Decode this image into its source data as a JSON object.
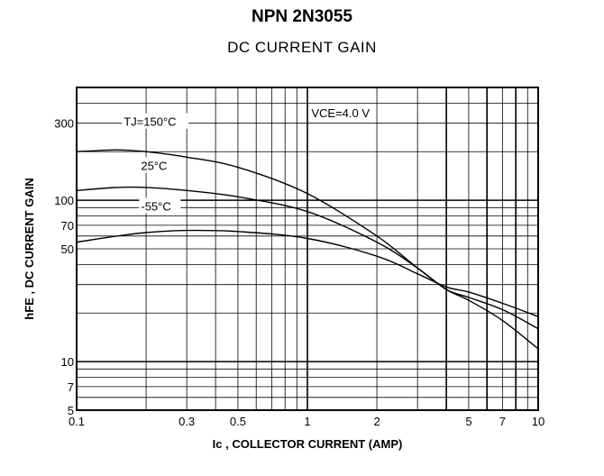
{
  "header": {
    "title": "NPN 2N3055",
    "subtitle": "DC CURRENT GAIN"
  },
  "chart_data": {
    "type": "line",
    "title": "DC CURRENT GAIN",
    "xlabel": "Ic , COLLECTOR CURRENT (AMP)",
    "ylabel": "hFE , DC CURRENT GAIN",
    "xscale": "log",
    "yscale": "log",
    "xlim": [
      0.1,
      10
    ],
    "ylim": [
      5,
      500
    ],
    "grid": true,
    "x_tick_labels": [
      {
        "value": 0.1,
        "label": "0.1"
      },
      {
        "value": 0.3,
        "label": "0.3"
      },
      {
        "value": 0.5,
        "label": "0.5"
      },
      {
        "value": 1,
        "label": "1"
      },
      {
        "value": 2,
        "label": "2"
      },
      {
        "value": 5,
        "label": "5"
      },
      {
        "value": 7,
        "label": "7"
      },
      {
        "value": 10,
        "label": "10"
      }
    ],
    "y_tick_labels": [
      {
        "value": 300,
        "label": "300"
      },
      {
        "value": 100,
        "label": "100"
      },
      {
        "value": 70,
        "label": "70"
      },
      {
        "value": 50,
        "label": "50"
      },
      {
        "value": 10,
        "label": "10"
      },
      {
        "value": 7,
        "label": "7"
      },
      {
        "value": 5,
        "label": "5"
      }
    ],
    "annotations": {
      "condition": "VCE=4.0 V",
      "tj_150": "TJ=150°C",
      "tj_25": "25°C",
      "tj_m55": "-55°C"
    },
    "series": [
      {
        "name": "TJ=150°C",
        "x": [
          0.1,
          0.15,
          0.2,
          0.3,
          0.5,
          1,
          2,
          3,
          4,
          5,
          7,
          10
        ],
        "y": [
          200,
          205,
          200,
          185,
          160,
          110,
          60,
          38,
          28,
          24,
          18,
          12
        ]
      },
      {
        "name": "25°C",
        "x": [
          0.1,
          0.15,
          0.2,
          0.3,
          0.5,
          1,
          2,
          3,
          4,
          5,
          7,
          10
        ],
        "y": [
          115,
          120,
          120,
          115,
          105,
          85,
          55,
          38,
          28,
          25,
          21,
          16
        ]
      },
      {
        "name": "-55°C",
        "x": [
          0.1,
          0.15,
          0.2,
          0.3,
          0.5,
          1,
          2,
          3,
          4,
          5,
          7,
          10
        ],
        "y": [
          55,
          60,
          63,
          65,
          64,
          58,
          45,
          35,
          29,
          27,
          23,
          19
        ]
      }
    ]
  }
}
